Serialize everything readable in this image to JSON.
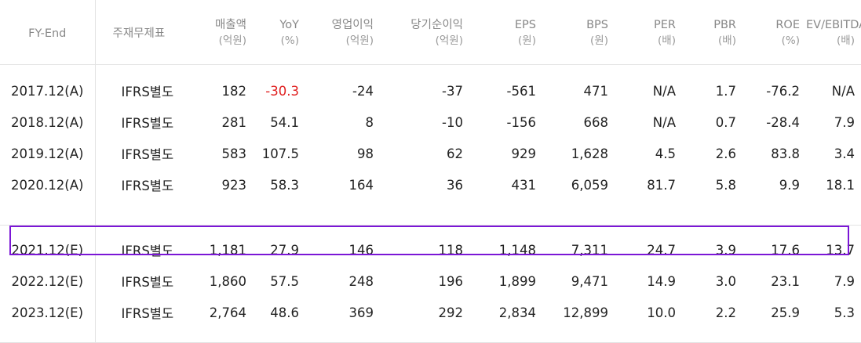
{
  "highlight_color": "#7b16d6",
  "negative_color": "#e02020",
  "header": {
    "fy": "FY-End",
    "standard": "주재무제표",
    "revenue": {
      "label": "매출액",
      "unit": "(억원)"
    },
    "yoy": {
      "label": "YoY",
      "unit": "(%)"
    },
    "op_income": {
      "label": "영업이익",
      "unit": "(억원)"
    },
    "net_income": {
      "label": "당기순이익",
      "unit": "(억원)"
    },
    "eps": {
      "label": "EPS",
      "unit": "(원)"
    },
    "bps": {
      "label": "BPS",
      "unit": "(원)"
    },
    "per": {
      "label": "PER",
      "unit": "(배)"
    },
    "pbr": {
      "label": "PBR",
      "unit": "(배)"
    },
    "roe": {
      "label": "ROE",
      "unit": "(%)"
    },
    "ev_ebitda": {
      "label": "EV/EBITDA",
      "unit": "(배)"
    }
  },
  "rows": [
    {
      "fy": "2017.12(A)",
      "std": "IFRS별도",
      "revenue": "182",
      "yoy": "-30.3",
      "op": "-24",
      "net": "-37",
      "eps": "-561",
      "bps": "471",
      "per": "N/A",
      "pbr": "1.7",
      "roe": "-76.2",
      "ev": "N/A"
    },
    {
      "fy": "2018.12(A)",
      "std": "IFRS별도",
      "revenue": "281",
      "yoy": "54.1",
      "op": "8",
      "net": "-10",
      "eps": "-156",
      "bps": "668",
      "per": "N/A",
      "pbr": "0.7",
      "roe": "-28.4",
      "ev": "7.9"
    },
    {
      "fy": "2019.12(A)",
      "std": "IFRS별도",
      "revenue": "583",
      "yoy": "107.5",
      "op": "98",
      "net": "62",
      "eps": "929",
      "bps": "1,628",
      "per": "4.5",
      "pbr": "2.6",
      "roe": "83.8",
      "ev": "3.4"
    },
    {
      "fy": "2020.12(A)",
      "std": "IFRS별도",
      "revenue": "923",
      "yoy": "58.3",
      "op": "164",
      "net": "36",
      "eps": "431",
      "bps": "6,059",
      "per": "81.7",
      "pbr": "5.8",
      "roe": "9.9",
      "ev": "18.1"
    },
    {
      "fy": "2021.12(E)",
      "std": "IFRS별도",
      "revenue": "1,181",
      "yoy": "27.9",
      "op": "146",
      "net": "118",
      "eps": "1,148",
      "bps": "7,311",
      "per": "24.7",
      "pbr": "3.9",
      "roe": "17.6",
      "ev": "13.7"
    },
    {
      "fy": "2022.12(E)",
      "std": "IFRS별도",
      "revenue": "1,860",
      "yoy": "57.5",
      "op": "248",
      "net": "196",
      "eps": "1,899",
      "bps": "9,471",
      "per": "14.9",
      "pbr": "3.0",
      "roe": "23.1",
      "ev": "7.9"
    },
    {
      "fy": "2023.12(E)",
      "std": "IFRS별도",
      "revenue": "2,764",
      "yoy": "48.6",
      "op": "369",
      "net": "292",
      "eps": "2,834",
      "bps": "12,899",
      "per": "10.0",
      "pbr": "2.2",
      "roe": "25.9",
      "ev": "5.3"
    }
  ]
}
